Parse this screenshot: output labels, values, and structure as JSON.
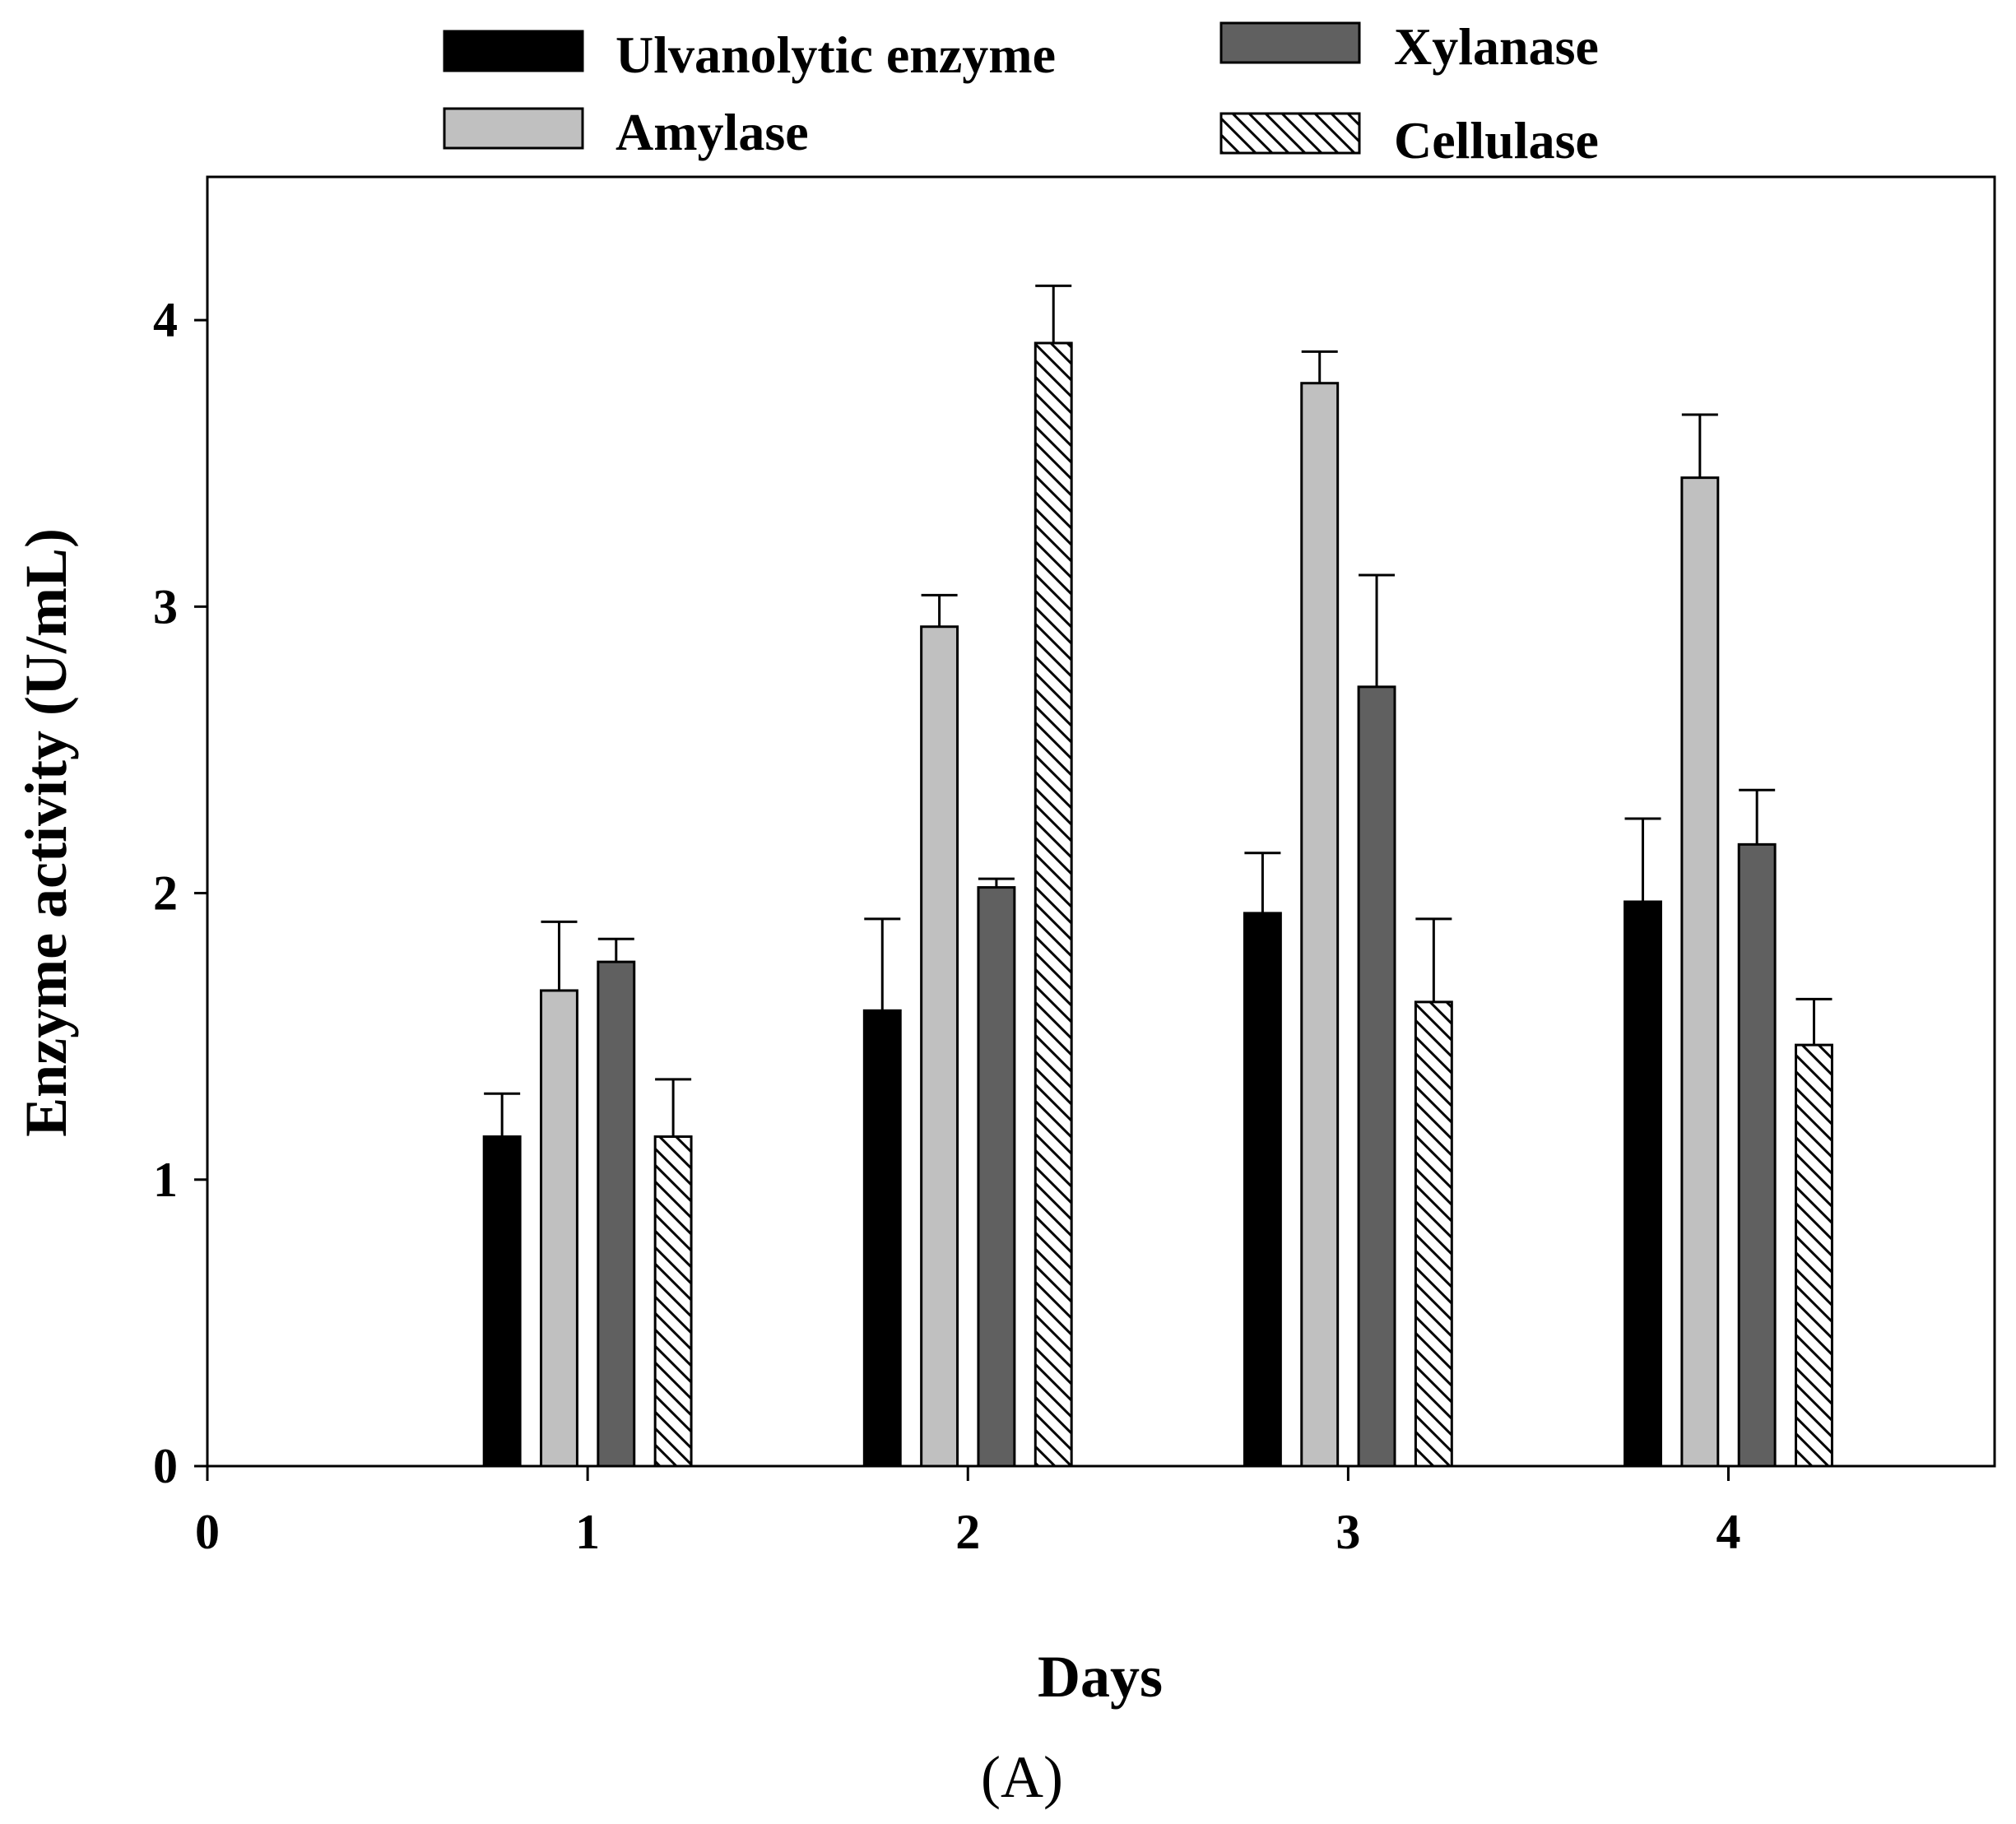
{
  "chart_data": {
    "type": "bar",
    "title": "",
    "panel_label": "(A)",
    "xlabel": "Days",
    "ylabel": "Enzyme activity (U/mL)",
    "xlim": [
      0,
      4.7
    ],
    "ylim": [
      0,
      4.5
    ],
    "x_ticks": [
      0,
      1,
      2,
      3,
      4
    ],
    "y_ticks": [
      0,
      1,
      2,
      3,
      4
    ],
    "categories": [
      1,
      2,
      3,
      4
    ],
    "legend_position": "top, outside plot, two columns",
    "series": [
      {
        "name": "Ulvanolytic enzyme",
        "fill": "#000000",
        "pattern": "solid",
        "values": [
          1.15,
          1.59,
          1.93,
          1.97
        ],
        "errors": [
          0.15,
          0.32,
          0.21,
          0.29
        ]
      },
      {
        "name": "Amylase",
        "fill": "#c0c0c0",
        "pattern": "solid",
        "values": [
          1.66,
          2.93,
          3.78,
          3.45
        ],
        "errors": [
          0.24,
          0.11,
          0.11,
          0.22
        ]
      },
      {
        "name": "Xylanase",
        "fill": "#606060",
        "pattern": "solid",
        "values": [
          1.76,
          2.02,
          2.72,
          2.17
        ],
        "errors": [
          0.08,
          0.03,
          0.39,
          0.19
        ]
      },
      {
        "name": "Cellulase",
        "fill": "#ffffff",
        "pattern": "diagonal-hatch",
        "values": [
          1.15,
          3.92,
          1.62,
          1.47
        ],
        "errors": [
          0.2,
          0.2,
          0.29,
          0.16
        ]
      }
    ]
  }
}
